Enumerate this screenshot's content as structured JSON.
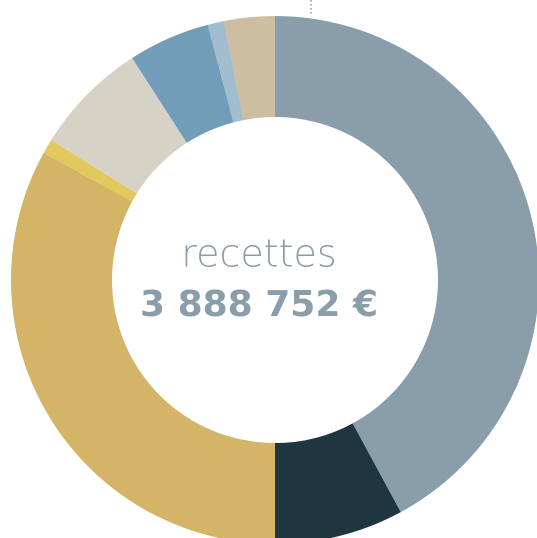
{
  "chart_data": {
    "type": "donut",
    "center_label": "recettes",
    "center_value": "3 888 752 €",
    "values": [
      42.1,
      7.9,
      33,
      0.9,
      7,
      5,
      1,
      3.1
    ],
    "colors": [
      "#8a9dab",
      "#1d3640",
      "#d4b466",
      "#e2c95e",
      "#d6d3c6",
      "#719db9",
      "#a3bdd0",
      "#cdbda1"
    ]
  }
}
